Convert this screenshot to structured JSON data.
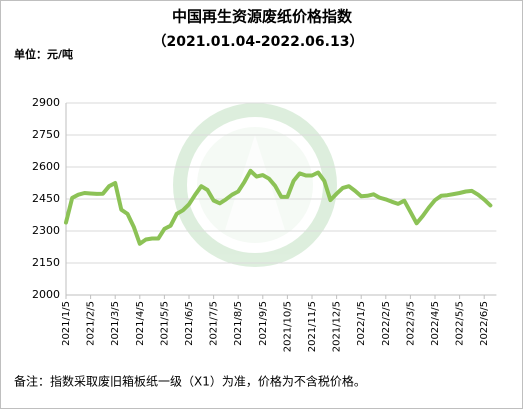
{
  "chart_data": {
    "type": "line",
    "title": "中国再生资源废纸价格指数",
    "subtitle": "（2021.01.04-2022.06.13）",
    "unit_label": "单位：元/吨",
    "note": "备注：指数采取废旧箱板纸一级（X1）为准，价格为不含税价格。",
    "categories": [
      "2021/1/5",
      null,
      null,
      null,
      "2021/2/5",
      null,
      null,
      null,
      "2021/3/5",
      null,
      null,
      null,
      "2021/4/5",
      null,
      null,
      null,
      "2021/5/5",
      null,
      null,
      null,
      "2021/6/5",
      null,
      null,
      null,
      "2021/7/5",
      null,
      null,
      null,
      "2021/8/5",
      null,
      null,
      null,
      "2021/9/5",
      null,
      null,
      null,
      "2021/10/5",
      null,
      null,
      null,
      "2021/11/5",
      null,
      null,
      null,
      "2021/12/5",
      null,
      null,
      null,
      "2022/1/5",
      null,
      null,
      null,
      "2022/2/5",
      null,
      null,
      null,
      "2022/3/5",
      null,
      null,
      null,
      "2022/4/5",
      null,
      null,
      null,
      "2022/5/5",
      null,
      null,
      null,
      "2022/6/5",
      null
    ],
    "values": [
      2340,
      2455,
      2470,
      2478,
      2476,
      2474,
      2475,
      2510,
      2525,
      2400,
      2380,
      2320,
      2240,
      2260,
      2265,
      2265,
      2310,
      2325,
      2380,
      2397,
      2425,
      2470,
      2510,
      2492,
      2443,
      2430,
      2448,
      2470,
      2485,
      2530,
      2582,
      2555,
      2562,
      2545,
      2512,
      2460,
      2460,
      2535,
      2570,
      2560,
      2560,
      2574,
      2535,
      2445,
      2475,
      2502,
      2510,
      2488,
      2463,
      2465,
      2472,
      2456,
      2448,
      2437,
      2427,
      2442,
      2390,
      2336,
      2370,
      2410,
      2445,
      2465,
      2468,
      2473,
      2478,
      2485,
      2488,
      2470,
      2447,
      2420
    ],
    "color": "#8cc256",
    "ylim": [
      2000,
      2900
    ],
    "yticks": [
      2000,
      2150,
      2300,
      2450,
      2600,
      2750,
      2900
    ],
    "grid": true
  }
}
